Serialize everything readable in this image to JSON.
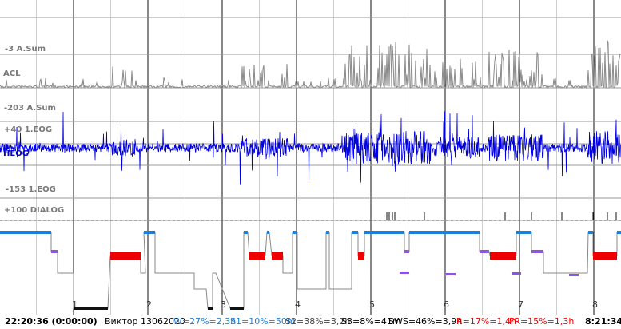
{
  "channels": [
    {
      "id": "acl_scale",
      "label": "-3 A.Sum"
    },
    {
      "id": "acl",
      "label": "ACL"
    },
    {
      "id": "eog_scale_top",
      "label": "-203 A.Sum"
    },
    {
      "id": "eog_mid",
      "label": "+40 1.EOG"
    },
    {
      "id": "heog",
      "label": "HEOG"
    },
    {
      "id": "eog_scale_bottom",
      "label": "-153 1.EOG"
    },
    {
      "id": "dialog",
      "label": "+100 DIALOG"
    }
  ],
  "hour_marks": [
    "1",
    "2",
    "3",
    "4",
    "5",
    "6",
    "7",
    "8"
  ],
  "status": {
    "start_time": "22:20:36 (0:00:00)",
    "subject": "Виктор 13062020",
    "wake": "W=27%=2,3h",
    "s1": "S1=10%=50m",
    "s2": "S2=38%=3,2h",
    "s3": "S3=8%=41m",
    "sws": "SWS=46%=3,9h",
    "rem": "R=17%=1,4h",
    "fr": "FR=15%=1,3h",
    "end_time": "8:21:34"
  },
  "colors": {
    "acl": "#8a8a8a",
    "heog": "#0000e0",
    "wake": "#1e7fd8",
    "rem": "#ee0000",
    "s1": "#8a55e0",
    "hypno_line": "#888888",
    "deep": "#111111",
    "text_w": "#1e7fd8",
    "text_s1": "#1e7fd8",
    "text_s2": "#444444",
    "text_r": "#ee0000",
    "text_fr": "#ee0000"
  }
}
